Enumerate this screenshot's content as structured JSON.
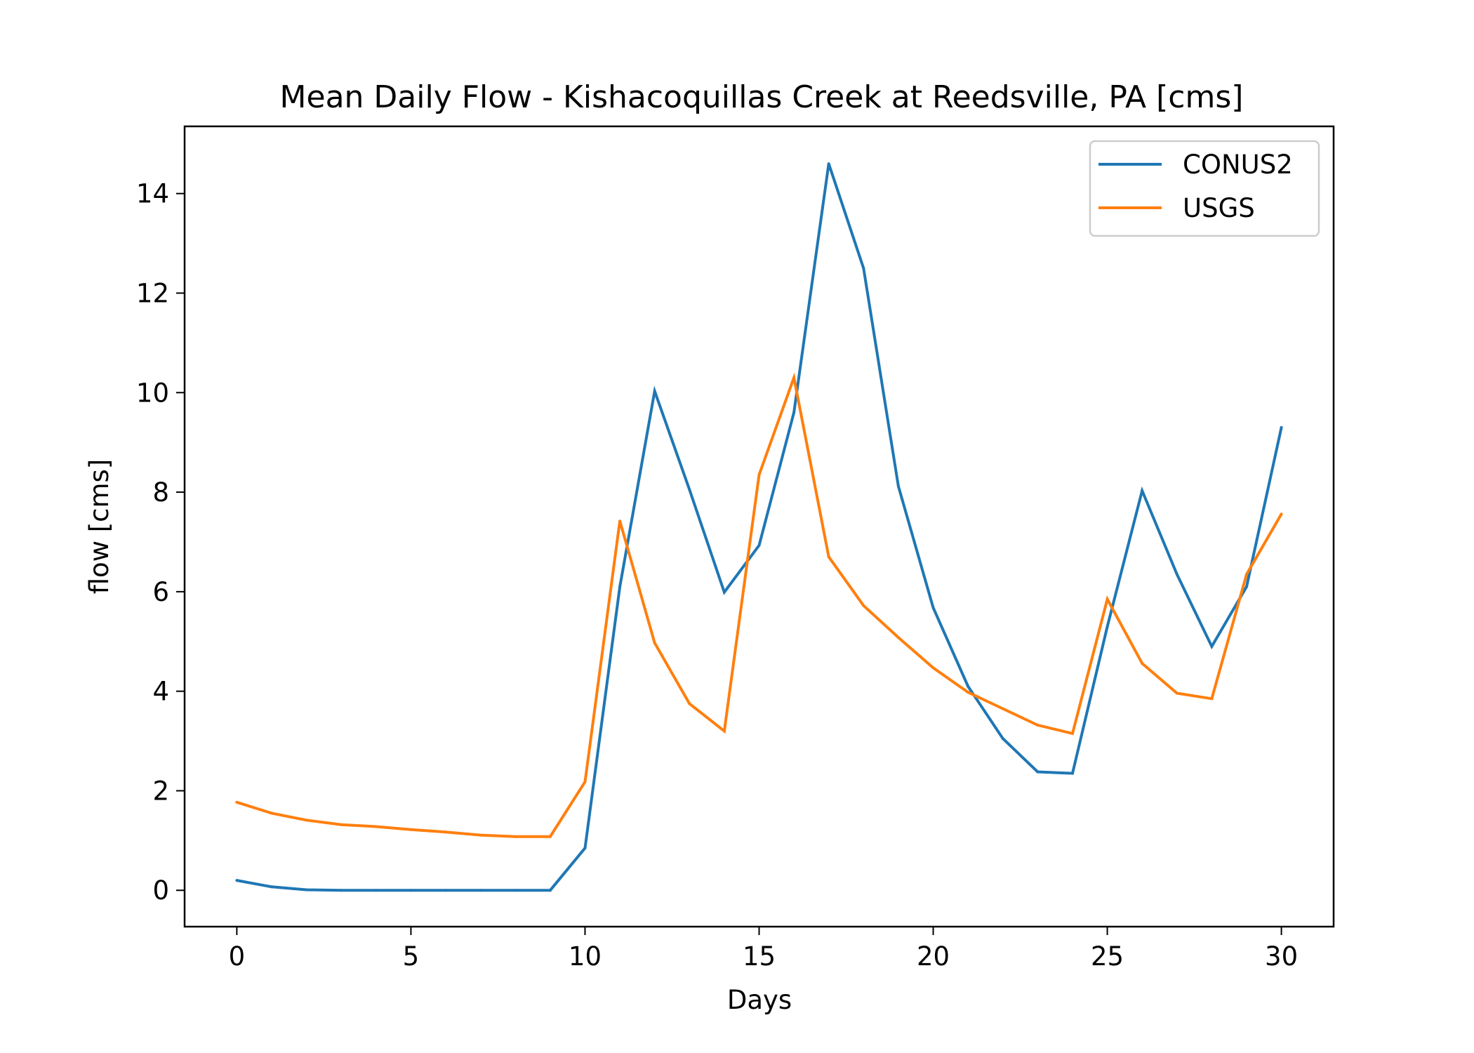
{
  "chart_data": {
    "type": "line",
    "title": "Mean Daily Flow - Kishacoquillas Creek at Reedsville, PA [cms]",
    "xlabel": "Days",
    "ylabel": "flow [cms]",
    "xlim": [
      -1.5,
      31.5
    ],
    "ylim": [
      -0.73,
      15.35
    ],
    "xticks": [
      0,
      5,
      10,
      15,
      20,
      25,
      30
    ],
    "yticks": [
      0,
      2,
      4,
      6,
      8,
      10,
      12,
      14
    ],
    "grid": false,
    "legend_position": "top-right",
    "x": [
      0,
      1,
      2,
      3,
      4,
      5,
      6,
      7,
      8,
      9,
      10,
      11,
      12,
      13,
      14,
      15,
      16,
      17,
      18,
      19,
      20,
      21,
      22,
      23,
      24,
      25,
      26,
      27,
      28,
      29,
      30
    ],
    "series": [
      {
        "name": "CONUS2",
        "color": "#1f77b4",
        "values": [
          0.2,
          0.07,
          0.01,
          0.0,
          0.0,
          0.0,
          0.0,
          0.0,
          0.0,
          0.0,
          0.85,
          6.1,
          10.03,
          8.05,
          5.99,
          6.93,
          9.6,
          14.6,
          12.5,
          8.12,
          5.68,
          4.1,
          3.05,
          2.38,
          2.35,
          5.3,
          8.03,
          6.35,
          4.9,
          6.1,
          9.3
        ]
      },
      {
        "name": "USGS",
        "color": "#ff7f0e",
        "values": [
          1.77,
          1.55,
          1.41,
          1.32,
          1.28,
          1.22,
          1.17,
          1.11,
          1.08,
          1.08,
          2.18,
          7.42,
          4.97,
          3.75,
          3.2,
          8.35,
          10.3,
          6.7,
          5.72,
          5.08,
          4.47,
          3.98,
          3.65,
          3.32,
          3.15,
          5.85,
          4.56,
          3.96,
          3.85,
          6.35,
          7.56
        ]
      }
    ]
  }
}
